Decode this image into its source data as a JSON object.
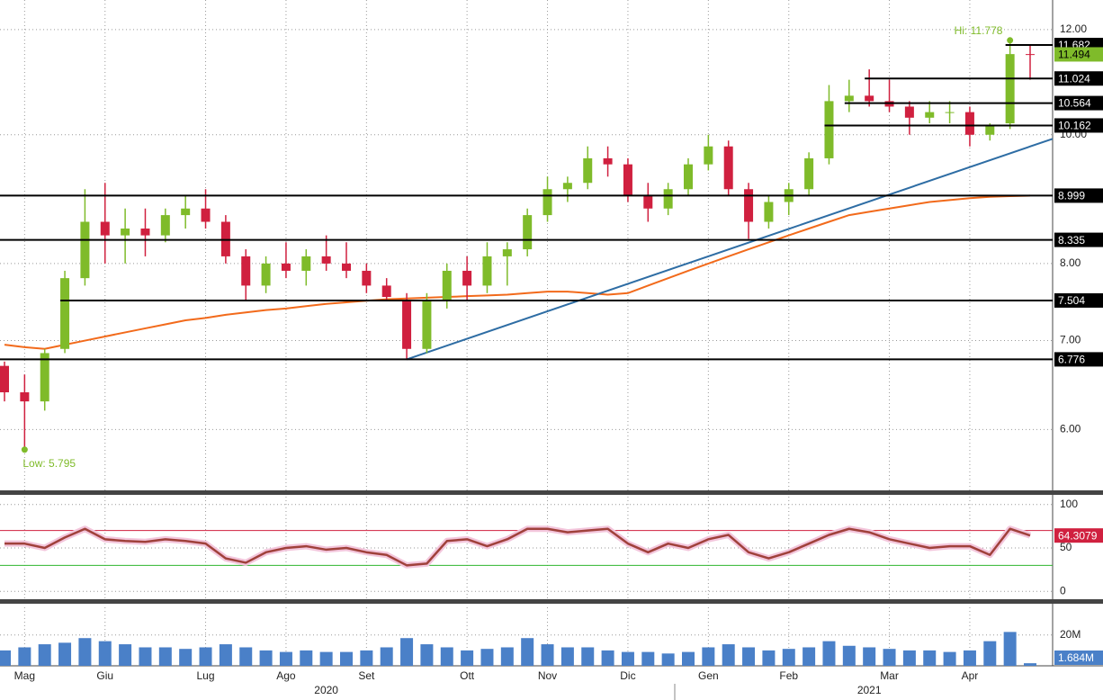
{
  "chart_data": [
    {
      "type": "candlestick",
      "categories": [
        null,
        "Mag",
        null,
        null,
        null,
        "Giu",
        null,
        null,
        null,
        null,
        "Lug",
        null,
        null,
        null,
        "Ago",
        null,
        null,
        null,
        "Set",
        null,
        null,
        null,
        null,
        "Ott",
        null,
        null,
        null,
        "Nov",
        null,
        null,
        null,
        "Dic",
        null,
        null,
        null,
        "Gen",
        null,
        null,
        null,
        "Feb",
        null,
        null,
        null,
        null,
        "Mar",
        null,
        null,
        null,
        "Apr",
        null,
        null,
        null
      ],
      "categories2": [
        null,
        null,
        null,
        null,
        null,
        null,
        null,
        null,
        null,
        null,
        null,
        null,
        null,
        null,
        null,
        null,
        "2020",
        null,
        null,
        null,
        null,
        null,
        null,
        null,
        null,
        null,
        null,
        null,
        null,
        null,
        null,
        null,
        null,
        null,
        null,
        null,
        null,
        null,
        null,
        null,
        null,
        null,
        null,
        "2021",
        null,
        null,
        null,
        null,
        null,
        null,
        null,
        null
      ],
      "candles": {
        "open": [
          6.7,
          6.4,
          6.3,
          6.9,
          7.8,
          8.6,
          8.4,
          8.5,
          8.4,
          8.7,
          8.8,
          8.6,
          8.1,
          7.7,
          8.0,
          7.9,
          8.1,
          8.0,
          7.9,
          7.7,
          7.5,
          6.9,
          7.5,
          7.9,
          7.7,
          8.1,
          8.2,
          8.7,
          9.1,
          9.2,
          9.6,
          9.5,
          9.0,
          8.8,
          9.1,
          9.5,
          9.8,
          9.1,
          8.6,
          8.9,
          9.1,
          9.6,
          10.6,
          10.7,
          10.6,
          10.5,
          10.3,
          10.4,
          10.4,
          10.0,
          10.2,
          11.5
        ],
        "high": [
          6.75,
          6.6,
          6.9,
          7.9,
          9.1,
          9.2,
          8.8,
          8.8,
          8.8,
          9.0,
          9.1,
          8.7,
          8.2,
          8.1,
          8.3,
          8.2,
          8.4,
          8.3,
          8.0,
          7.8,
          7.6,
          7.6,
          8.0,
          8.1,
          8.3,
          8.3,
          8.8,
          9.3,
          9.3,
          9.8,
          9.8,
          9.6,
          9.2,
          9.2,
          9.6,
          10.0,
          9.9,
          9.2,
          9.0,
          9.2,
          9.7,
          10.9,
          11.0,
          11.2,
          11.0,
          10.6,
          10.6,
          10.6,
          10.5,
          10.2,
          11.778,
          11.7
        ],
        "low": [
          6.3,
          5.795,
          6.2,
          6.85,
          7.7,
          8.0,
          8.0,
          8.1,
          8.3,
          8.5,
          8.5,
          8.0,
          7.5,
          7.6,
          7.8,
          7.7,
          7.9,
          7.8,
          7.6,
          7.5,
          6.776,
          6.85,
          7.4,
          7.5,
          7.6,
          7.7,
          8.1,
          8.6,
          8.9,
          9.1,
          9.3,
          8.9,
          8.6,
          8.7,
          9.0,
          9.4,
          9.0,
          8.35,
          8.5,
          8.7,
          9.0,
          9.5,
          10.4,
          10.5,
          10.4,
          10.0,
          10.2,
          10.2,
          9.8,
          9.9,
          10.1,
          11.0
        ],
        "close": [
          6.4,
          6.3,
          6.85,
          7.8,
          8.6,
          8.4,
          8.5,
          8.4,
          8.7,
          8.8,
          8.6,
          8.1,
          7.7,
          8.0,
          7.9,
          8.1,
          8.0,
          7.9,
          7.7,
          7.55,
          6.9,
          7.5,
          7.9,
          7.7,
          8.1,
          8.2,
          8.7,
          9.1,
          9.2,
          9.6,
          9.5,
          9.0,
          8.8,
          9.1,
          9.5,
          9.8,
          9.1,
          8.6,
          8.9,
          9.1,
          9.6,
          10.6,
          10.7,
          10.6,
          10.5,
          10.3,
          10.4,
          10.4,
          10.0,
          10.15,
          11.5,
          11.494
        ]
      },
      "up_color": "#7fbb2a",
      "down_color": "#d0203f",
      "overlay": {
        "color": "#f26a1b",
        "values": [
          6.95,
          6.92,
          6.9,
          6.95,
          7.0,
          7.05,
          7.1,
          7.15,
          7.2,
          7.25,
          7.28,
          7.32,
          7.35,
          7.38,
          7.4,
          7.43,
          7.46,
          7.48,
          7.5,
          7.52,
          7.53,
          7.54,
          7.55,
          7.56,
          7.57,
          7.58,
          7.6,
          7.62,
          7.62,
          7.6,
          7.58,
          7.6,
          7.7,
          7.8,
          7.9,
          8.0,
          8.1,
          8.2,
          8.3,
          8.4,
          8.5,
          8.6,
          8.7,
          8.75,
          8.8,
          8.85,
          8.9,
          8.93,
          8.96,
          8.98,
          8.99,
          8.999
        ]
      },
      "levels": [
        {
          "value": 11.682,
          "from": 50
        },
        {
          "value": 11.024,
          "from": 43
        },
        {
          "value": 10.564,
          "from": 42
        },
        {
          "value": 10.162,
          "from": 41
        },
        {
          "value": 8.999,
          "from": 0
        },
        {
          "value": 8.335,
          "from": 0
        },
        {
          "value": 7.504,
          "from": 3
        },
        {
          "value": 6.776,
          "from": 0
        }
      ],
      "trendline": {
        "color": "#2e6da4",
        "from": {
          "index": 20,
          "value": 6.776
        },
        "to": {
          "index": 51,
          "value": 9.93
        }
      },
      "annotations": [
        {
          "text": "Hi: 11.778",
          "at": "high"
        },
        {
          "text": "Low: 5.795",
          "at": "low"
        }
      ],
      "annotation_color": "#7fbb2a",
      "last_price_color": "#7fbb2a",
      "log_scale": true,
      "grid": true,
      "ylim": [
        5.4,
        12.63
      ],
      "yticks": [
        {
          "value": 6,
          "label": "6.00"
        },
        {
          "value": 7,
          "label": "7.00"
        },
        {
          "value": 8,
          "label": "8.00"
        },
        {
          "value": 10,
          "label": "10.00"
        },
        {
          "value": 12,
          "label": "12.00"
        }
      ]
    },
    {
      "type": "line",
      "values": [
        55,
        55,
        50,
        62,
        72,
        60,
        58,
        57,
        60,
        58,
        55,
        38,
        33,
        45,
        50,
        52,
        48,
        50,
        45,
        42,
        30,
        32,
        58,
        60,
        52,
        60,
        72,
        72,
        68,
        70,
        72,
        55,
        45,
        55,
        50,
        60,
        65,
        45,
        38,
        45,
        55,
        65,
        72,
        68,
        60,
        55,
        50,
        52,
        52,
        42,
        72,
        64.3079
      ],
      "color": "#a0413b",
      "label_color": "#d0203f",
      "bands": [
        {
          "value": 70,
          "color": "#d0203f"
        },
        {
          "value": 30,
          "color": "#2fb52f"
        }
      ],
      "ylim": [
        -9,
        109
      ],
      "yticks": [
        0,
        50,
        100
      ],
      "grid": true
    },
    {
      "type": "bar",
      "values": [
        10000000,
        12000000,
        14000000,
        15000000,
        18000000,
        16000000,
        14000000,
        12000000,
        12000000,
        11000000,
        12000000,
        14000000,
        12000000,
        10000000,
        9000000,
        10000000,
        9000000,
        9000000,
        10000000,
        12000000,
        18000000,
        14000000,
        12000000,
        10000000,
        11000000,
        12000000,
        18000000,
        14000000,
        12000000,
        12000000,
        10000000,
        9000000,
        9000000,
        8000000,
        9000000,
        12000000,
        14000000,
        12000000,
        10000000,
        11000000,
        12000000,
        16000000,
        13000000,
        12000000,
        11000000,
        10000000,
        10000000,
        9000000,
        10000000,
        16000000,
        22000000,
        1684000
      ],
      "value_labels": [
        null,
        null,
        null,
        null,
        null,
        null,
        null,
        null,
        null,
        null,
        null,
        null,
        null,
        null,
        null,
        null,
        null,
        null,
        null,
        null,
        null,
        null,
        null,
        null,
        null,
        null,
        null,
        null,
        null,
        null,
        null,
        null,
        null,
        null,
        null,
        null,
        null,
        null,
        null,
        null,
        null,
        null,
        null,
        null,
        null,
        null,
        null,
        null,
        null,
        null,
        null,
        "1.684M"
      ],
      "color": "#4a80c8",
      "ylim": [
        0,
        38000000
      ],
      "yticks": [
        {
          "value": 20000000,
          "label": "20M"
        }
      ],
      "grid": true
    }
  ]
}
